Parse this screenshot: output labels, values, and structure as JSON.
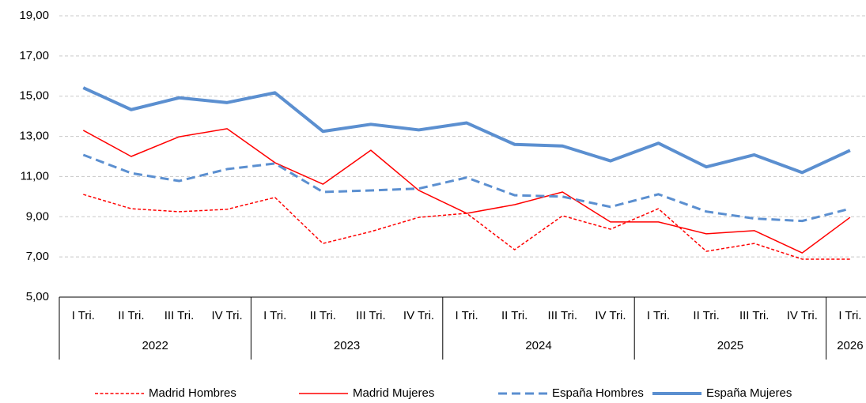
{
  "chart_data": {
    "type": "line",
    "categories": [
      "I Tri.",
      "II Tri.",
      "III Tri.",
      "IV Tri.",
      "I Tri.",
      "II Tri.",
      "III Tri.",
      "IV Tri.",
      "I Tri.",
      "II Tri.",
      "III Tri.",
      "IV Tri.",
      "I Tri.",
      "II Tri.",
      "III Tri.",
      "IV Tri.",
      "I Tri."
    ],
    "category_groups": [
      {
        "label": "2022",
        "count": 4
      },
      {
        "label": "2023",
        "count": 4
      },
      {
        "label": "2024",
        "count": 4
      },
      {
        "label": "2025",
        "count": 4
      },
      {
        "label": "2026",
        "count": 1
      }
    ],
    "series": [
      {
        "name": "Madrid Hombres",
        "color": "#ff0000",
        "linestyle": "dotted",
        "linewidth": 1.5,
        "values": [
          10.11,
          9.4,
          9.25,
          9.37,
          9.96,
          7.67,
          8.26,
          8.97,
          9.17,
          7.36,
          9.05,
          8.38,
          9.4,
          7.28,
          7.67,
          6.89,
          6.89
        ]
      },
      {
        "name": "Madrid Mujeres",
        "color": "#ff0000",
        "linestyle": "solid",
        "linewidth": 1.5,
        "values": [
          13.3,
          12.0,
          12.98,
          13.38,
          11.69,
          10.62,
          12.31,
          10.31,
          9.17,
          9.6,
          10.23,
          8.74,
          8.74,
          8.15,
          8.31,
          7.2,
          8.97
        ]
      },
      {
        "name": "España Hombres",
        "color": "#5b8fd0",
        "linestyle": "dashed",
        "linewidth": 3,
        "values": [
          12.08,
          11.17,
          10.78,
          11.37,
          11.65,
          10.23,
          10.31,
          10.4,
          10.95,
          10.07,
          10.0,
          9.49,
          10.12,
          9.26,
          8.91,
          8.79,
          9.4
        ]
      },
      {
        "name": "España Mujeres",
        "color": "#5b8fd0",
        "linestyle": "solid",
        "linewidth": 4,
        "values": [
          15.42,
          14.33,
          14.92,
          14.68,
          15.17,
          13.25,
          13.6,
          13.32,
          13.67,
          12.6,
          12.52,
          11.78,
          12.66,
          11.48,
          12.08,
          11.2,
          12.3
        ]
      }
    ],
    "ylim": [
      5,
      19
    ],
    "yticks": [
      {
        "value": 5,
        "label": "5,00"
      },
      {
        "value": 7,
        "label": "7,00"
      },
      {
        "value": 9,
        "label": "9,00"
      },
      {
        "value": 11,
        "label": "11,00"
      },
      {
        "value": 13,
        "label": "13,00"
      },
      {
        "value": 15,
        "label": "15,00"
      },
      {
        "value": 17,
        "label": "17,00"
      },
      {
        "value": 19,
        "label": "19,00"
      }
    ],
    "grid": true,
    "legend": "bottom"
  }
}
